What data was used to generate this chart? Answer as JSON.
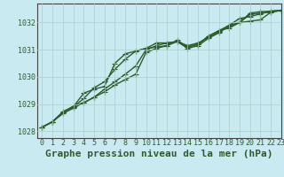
{
  "title": "Graphe pression niveau de la mer (hPa)",
  "background_color": "#c8eaf0",
  "plot_bg_color": "#c8eaf0",
  "grid_color": "#aacfcc",
  "line_color": "#2d5c2d",
  "xlim": [
    -0.5,
    23
  ],
  "ylim": [
    1027.75,
    1032.7
  ],
  "xticks": [
    0,
    1,
    2,
    3,
    4,
    5,
    6,
    7,
    8,
    9,
    10,
    11,
    12,
    13,
    14,
    15,
    16,
    17,
    18,
    19,
    20,
    21,
    22,
    23
  ],
  "yticks": [
    1028,
    1029,
    1030,
    1031,
    1032
  ],
  "series": [
    [
      1028.15,
      1028.35,
      1028.65,
      1028.85,
      1029.05,
      1029.25,
      1029.45,
      1029.7,
      1029.9,
      1030.1,
      1030.9,
      1031.05,
      1031.15,
      1031.3,
      1031.15,
      1031.25,
      1031.45,
      1031.65,
      1031.85,
      1032.0,
      1032.3,
      1032.35,
      1032.38,
      1032.45
    ],
    [
      1028.15,
      1028.35,
      1028.7,
      1028.9,
      1029.4,
      1029.55,
      1029.65,
      1030.5,
      1030.85,
      1030.95,
      1031.05,
      1031.1,
      1031.15,
      1031.35,
      1031.1,
      1031.2,
      1031.5,
      1031.7,
      1031.9,
      1032.0,
      1032.05,
      1032.1,
      1032.38,
      1032.45
    ],
    [
      1028.15,
      1028.35,
      1028.7,
      1028.9,
      1029.2,
      1029.6,
      1029.82,
      1030.28,
      1030.65,
      1030.95,
      1031.05,
      1031.25,
      1031.25,
      1031.3,
      1031.1,
      1031.2,
      1031.5,
      1031.7,
      1031.8,
      1032.0,
      1032.35,
      1032.4,
      1032.42,
      1032.45
    ],
    [
      1028.15,
      1028.35,
      1028.72,
      1028.92,
      1029.05,
      1029.25,
      1029.55,
      1029.82,
      1030.1,
      1030.4,
      1031.0,
      1031.15,
      1031.25,
      1031.3,
      1031.05,
      1031.15,
      1031.42,
      1031.62,
      1031.9,
      1032.15,
      1032.22,
      1032.32,
      1032.42,
      1032.45
    ]
  ],
  "marker": "+",
  "markersize": 4,
  "linewidth": 1.0,
  "title_fontsize": 8,
  "tick_fontsize": 6,
  "ylabel_color": "#2d5c2d"
}
